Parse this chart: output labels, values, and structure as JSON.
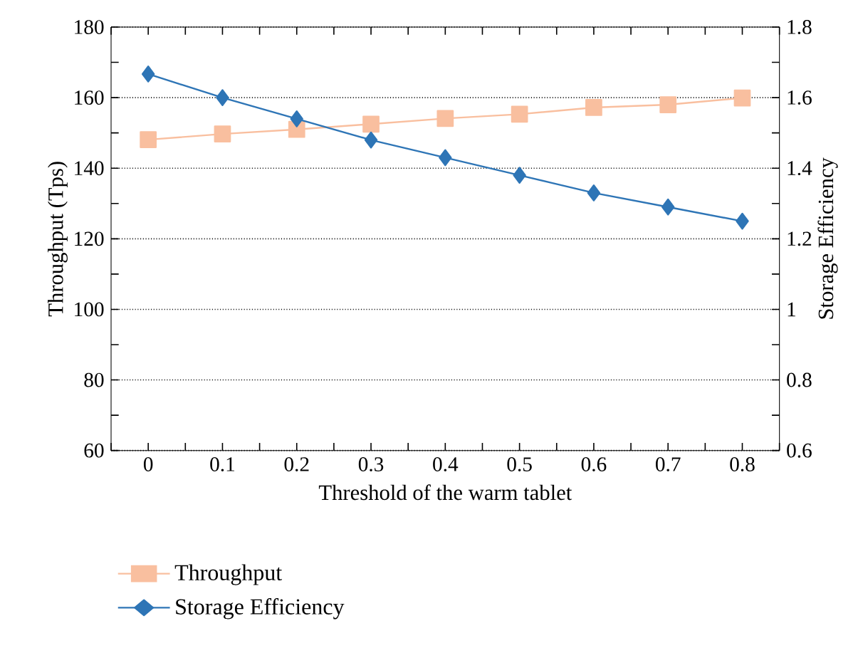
{
  "chart_data": {
    "type": "line",
    "xlabel": "Threshold of the warm tablet",
    "ylabel": "Throughput (Tps)",
    "y2label": "Storage Efficiency",
    "categories": [
      "0",
      "0.1",
      "0.2",
      "0.3",
      "0.4",
      "0.5",
      "0.6",
      "0.7",
      "0.8"
    ],
    "series": [
      {
        "name": "Throughput",
        "color": "#f9bf9f",
        "marker": "square",
        "values": [
          148.1,
          149.7,
          151,
          152.5,
          154.1,
          155.3,
          157.2,
          158,
          159.9
        ]
      },
      {
        "name": "Storage Efficiency",
        "color": "#2e75b6",
        "marker": "diamond",
        "axis": "y2",
        "values": [
          1.667,
          1.6,
          1.54,
          1.48,
          1.43,
          1.38,
          1.33,
          1.29,
          1.25
        ]
      }
    ],
    "ylim": [
      60,
      180
    ],
    "yticks": [
      60,
      80,
      100,
      120,
      140,
      160,
      180
    ],
    "y2lim": [
      0.6,
      1.8
    ],
    "y2ticks": [
      0.6,
      0.8,
      1,
      1.2,
      1.4,
      1.6,
      1.8
    ],
    "grid": "y",
    "legend": "bottom",
    "line_style": "solid"
  }
}
